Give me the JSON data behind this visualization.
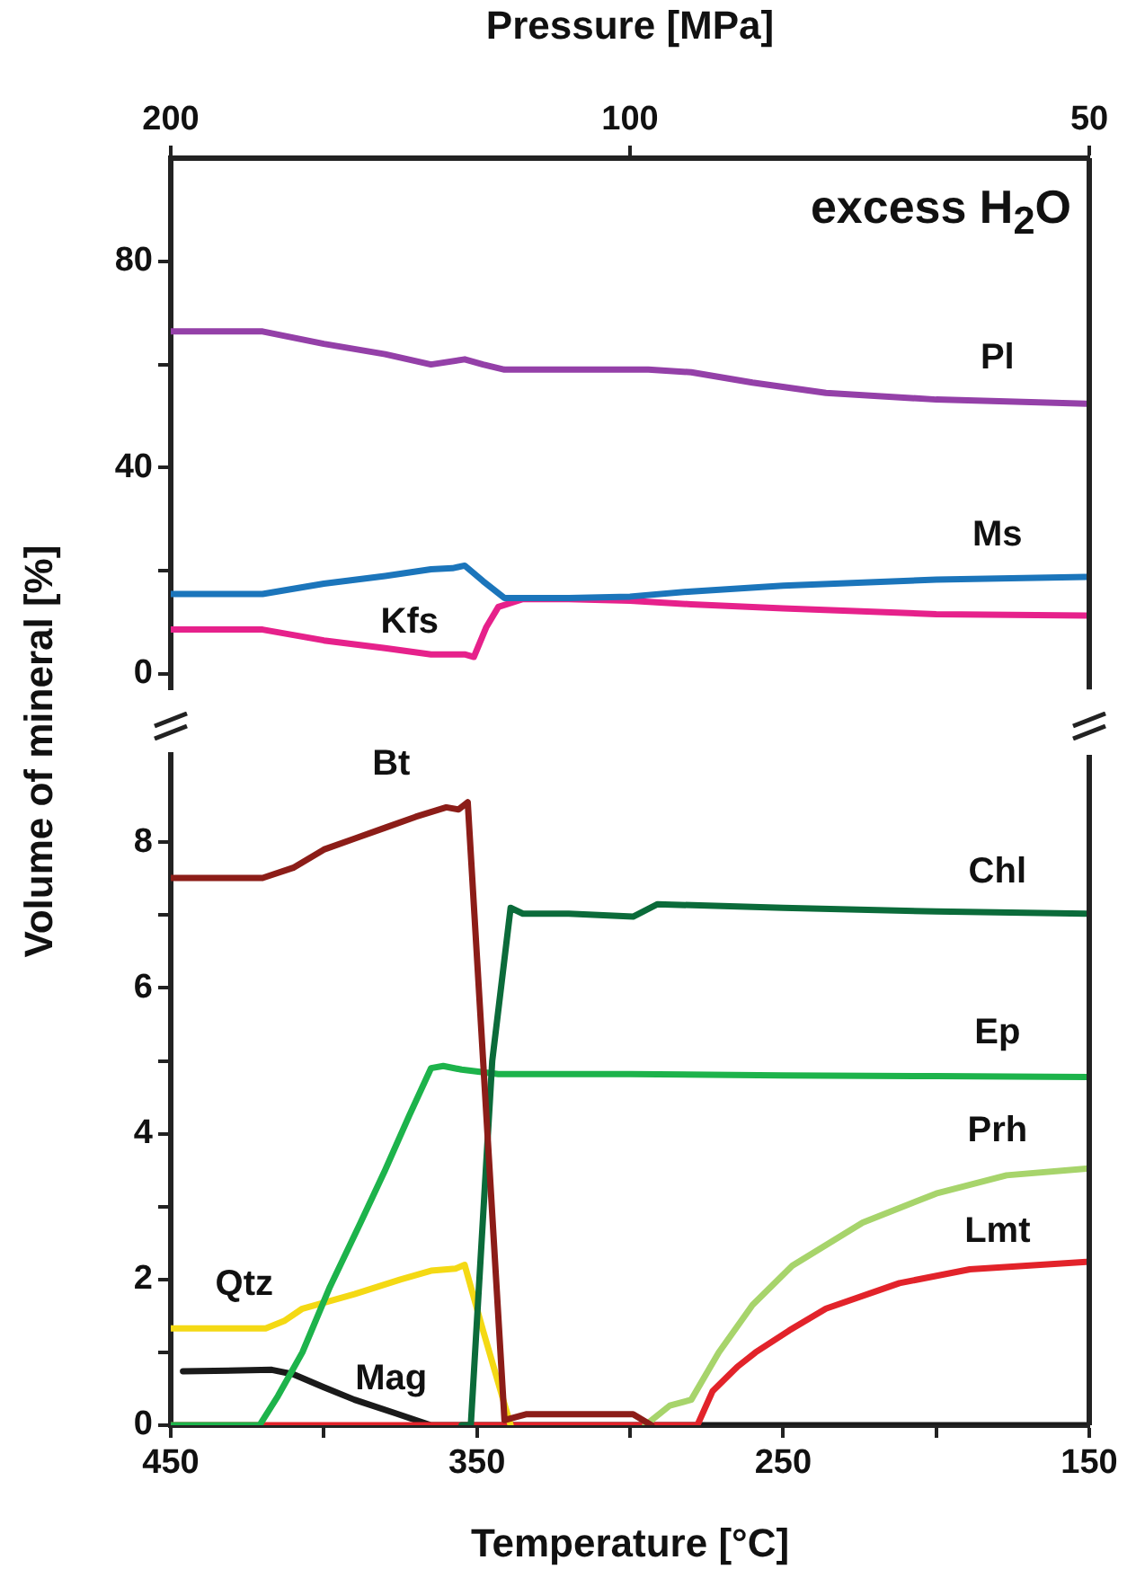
{
  "chart_data": [
    {
      "type": "line",
      "x2label": "Pressure [MPa]",
      "xlim": [
        450,
        150
      ],
      "x2lim": [
        200,
        50
      ],
      "x2ticks": [
        200,
        100,
        50
      ],
      "log": "x2",
      "ylim": [
        -3,
        100
      ],
      "yticks": [
        0,
        {
          "value": 20,
          "label": null
        },
        40,
        {
          "value": 60,
          "label": null
        },
        80
      ],
      "tick_labels": "y",
      "legend": false,
      "grid": false,
      "annotations": [
        "excess H$_{2}$O"
      ],
      "series": [
        {
          "name": "Pl",
          "color": "#9440a8",
          "x": [
            450,
            420,
            400,
            380,
            365,
            354,
            348,
            341,
            320,
            294,
            280,
            260,
            236,
            200,
            151
          ],
          "values": [
            66.4,
            66.4,
            64,
            62,
            60,
            61,
            60,
            59,
            59,
            59,
            58.5,
            56.5,
            54.5,
            53.2,
            52.4
          ]
        },
        {
          "name": "Ms",
          "color": "#1b75bb",
          "x": [
            450,
            420,
            400,
            380,
            365,
            358,
            354,
            348,
            341,
            320,
            300,
            280,
            250,
            200,
            151
          ],
          "values": [
            15.5,
            15.5,
            17.5,
            19,
            20.3,
            20.5,
            21,
            18,
            14.7,
            14.7,
            15,
            16,
            17.1,
            18.3,
            18.8
          ]
        },
        {
          "name": "Kfs",
          "color": "#e6218b",
          "x": [
            450,
            420,
            400,
            380,
            365,
            354,
            351,
            347,
            343,
            335,
            320,
            300,
            280,
            250,
            200,
            151
          ],
          "values": [
            8.6,
            8.6,
            6.5,
            5,
            3.8,
            3.8,
            3.3,
            9,
            13,
            14.5,
            14.5,
            14.2,
            13.5,
            12.7,
            11.6,
            11.3
          ]
        }
      ]
    },
    {
      "type": "line",
      "xlabel": "Temperature [°C]",
      "ylabel": "Volume of mineral [%]",
      "xlim": [
        450,
        150
      ],
      "xticks": [
        450,
        {
          "value": 400,
          "label": null
        },
        350,
        {
          "value": 300,
          "label": null
        },
        250,
        {
          "value": 200,
          "label": null
        },
        150
      ],
      "ylim": [
        0,
        9.2
      ],
      "yticks": [
        0,
        {
          "value": 1,
          "label": null
        },
        2,
        {
          "value": 3,
          "label": null
        },
        4,
        {
          "value": 5,
          "label": null
        },
        6,
        {
          "value": 7,
          "label": null
        },
        8
      ],
      "legend": false,
      "grid": false,
      "series": [
        {
          "name": "Bt",
          "color": "#8c1d18",
          "x": [
            450,
            420,
            410,
            400,
            390,
            380,
            370,
            360,
            356,
            353,
            341,
            334,
            320,
            299,
            293
          ],
          "values": [
            7.51,
            7.51,
            7.65,
            7.9,
            8.05,
            8.2,
            8.35,
            8.48,
            8.45,
            8.55,
            0.07,
            0.15,
            0.15,
            0.15,
            0
          ]
        },
        {
          "name": "Chl",
          "color": "#0b6b3a",
          "x": [
            355,
            352,
            345,
            339,
            335,
            320,
            299,
            291,
            250,
            200,
            151
          ],
          "values": [
            0,
            0,
            5,
            7.1,
            7.02,
            7.02,
            6.98,
            7.15,
            7.1,
            7.05,
            7.02
          ]
        },
        {
          "name": "Ep",
          "color": "#1db34b",
          "x": [
            450,
            421,
            415,
            407,
            398,
            388,
            380,
            372,
            365,
            361,
            355,
            343,
            300,
            250,
            200,
            151
          ],
          "values": [
            0,
            0,
            0.4,
            1,
            1.9,
            2.78,
            3.5,
            4.26,
            4.9,
            4.93,
            4.88,
            4.82,
            4.82,
            4.8,
            4.79,
            4.78
          ]
        },
        {
          "name": "Qtz",
          "color": "#f4d914",
          "x": [
            450,
            419,
            413,
            407,
            390,
            375,
            365,
            357,
            354,
            348,
            339
          ],
          "values": [
            1.33,
            1.33,
            1.43,
            1.6,
            1.8,
            2,
            2.12,
            2.15,
            2.2,
            1.3,
            0
          ]
        },
        {
          "name": "Prh",
          "color": "#a7d46b",
          "x": [
            295,
            287,
            280,
            271,
            260,
            247,
            224,
            200,
            177,
            151
          ],
          "values": [
            0,
            0.27,
            0.35,
            1,
            1.65,
            2.19,
            2.78,
            3.18,
            3.43,
            3.52
          ]
        },
        {
          "name": "Lmt",
          "color": "#e2232a",
          "x": [
            450,
            278,
            273,
            265,
            259,
            248,
            236,
            212,
            189,
            151
          ],
          "values": [
            0,
            0,
            0.47,
            0.8,
            1,
            1.3,
            1.6,
            1.95,
            2.14,
            2.24
          ]
        },
        {
          "name": "Mag",
          "color": "#1a1a1a",
          "x": [
            446,
            417,
            410,
            400,
            390,
            377,
            365,
            350,
            300,
            250,
            200,
            151
          ],
          "values": [
            0.74,
            0.76,
            0.7,
            0.52,
            0.35,
            0.17,
            0,
            0,
            0,
            0,
            0,
            0
          ]
        }
      ]
    }
  ]
}
